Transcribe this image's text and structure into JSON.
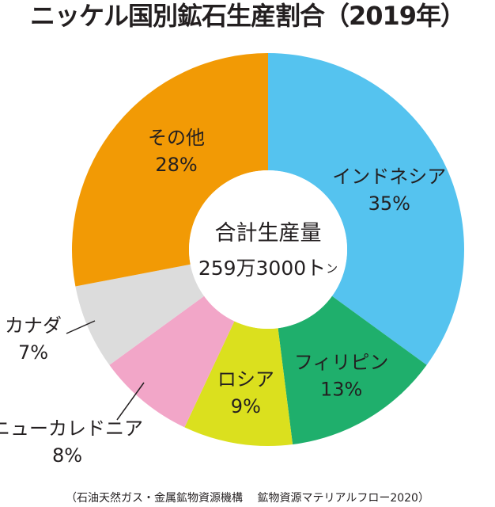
{
  "chart_data": {
    "type": "pie",
    "style": "donut",
    "title": "ニッケル国別鉱石生産割合（2019年）",
    "center_label": "合計生産量",
    "center_value": "259万3000ト",
    "center_unit": "ン",
    "slices": [
      {
        "name": "インドネシア",
        "label": "35%",
        "value": 35,
        "color": "#55c3ef"
      },
      {
        "name": "フィリピン",
        "label": "13%",
        "value": 13,
        "color": "#1faf6c"
      },
      {
        "name": "ロシア",
        "label": "9%",
        "value": 9,
        "color": "#dbe01e"
      },
      {
        "name": "ニューカレドニア",
        "label": "8%",
        "value": 8,
        "color": "#f2a6c8"
      },
      {
        "name": "カナダ",
        "label": "7%",
        "value": 7,
        "color": "#dcdcdc"
      },
      {
        "name": "その他",
        "label": "28%",
        "value": 28,
        "color": "#f29a05"
      }
    ],
    "source": "（石油天然ガス・金属鉱物資源機構　 鉱物資源マテリアルフロー2020）"
  }
}
